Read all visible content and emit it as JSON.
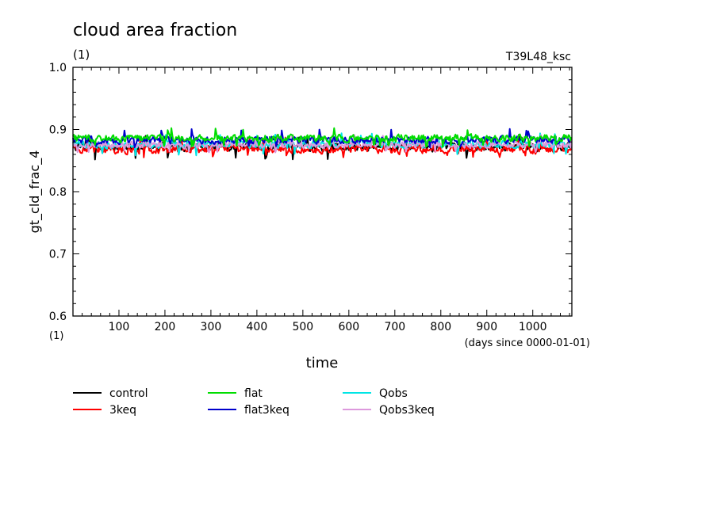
{
  "chart_data": {
    "type": "line",
    "title": "cloud area fraction",
    "title_unit": "(1)",
    "run_label": "T39L48_ksc",
    "xlabel": "time",
    "x_units": "(days since 0000-01-01)",
    "ylabel": "gt_cld_frac_4",
    "y_unit": "(1)",
    "xlim": [
      0,
      1085
    ],
    "ylim": [
      0.6,
      1.0
    ],
    "xticks": [
      100,
      200,
      300,
      400,
      500,
      600,
      700,
      800,
      900,
      1000
    ],
    "yticks": [
      "0.6",
      "0.7",
      "0.8",
      "0.9",
      "1.0"
    ],
    "grid": false,
    "legend_position": "bottom",
    "series": [
      {
        "name": "control",
        "color": "#000000",
        "mean": 0.872,
        "amp": 0.009,
        "dip": 0.851,
        "x": [
          0,
          1085
        ]
      },
      {
        "name": "3keq",
        "color": "#ff0000",
        "mean": 0.868,
        "amp": 0.009,
        "dip": 0.855,
        "x": [
          0,
          1085
        ]
      },
      {
        "name": "flat",
        "color": "#00dd00",
        "mean": 0.886,
        "amp": 0.008,
        "dip": 0.872,
        "x": [
          0,
          1085
        ]
      },
      {
        "name": "flat3keq",
        "color": "#0000cc",
        "mean": 0.883,
        "amp": 0.008,
        "dip": 0.87,
        "x": [
          0,
          1085
        ]
      },
      {
        "name": "Qobs",
        "color": "#00e5e5",
        "mean": 0.876,
        "amp": 0.008,
        "dip": 0.858,
        "x": [
          0,
          1085
        ]
      },
      {
        "name": "Qobs3keq",
        "color": "#dd99dd",
        "mean": 0.875,
        "amp": 0.007,
        "dip": 0.862,
        "x": [
          0,
          1085
        ]
      }
    ]
  }
}
